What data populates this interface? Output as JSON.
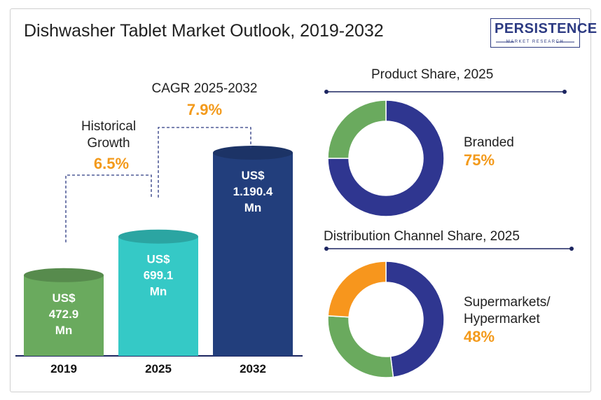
{
  "title": "Dishwasher Tablet Market Outlook, 2019-2032",
  "logo": {
    "main": "PERSISTENCE",
    "sub": "MARKET RESEARCH"
  },
  "colors": {
    "accent": "#f39a1b",
    "navy": "#2c3a82",
    "green": "#6aaa5e",
    "teal": "#35c9c6",
    "dark_blue": "#223e7c"
  },
  "chart_data": [
    {
      "type": "bar",
      "title": "",
      "categories": [
        "2019",
        "2025",
        "2032"
      ],
      "values": [
        472.9,
        699.1,
        1190.4
      ],
      "unit": "US$ Mn",
      "value_labels": [
        [
          "US$",
          "472.9",
          "Mn"
        ],
        [
          "US$",
          "699.1",
          "Mn"
        ],
        [
          "US$",
          "1.190.4",
          "Mn"
        ]
      ],
      "bar_colors": [
        "#6aaa5e",
        "#35c9c6",
        "#223e7c"
      ],
      "annotations": [
        {
          "lines": [
            "Historical",
            "Growth"
          ],
          "value": "6.5%"
        },
        {
          "lines": [
            "CAGR 2025-2032"
          ],
          "value": "7.9%"
        }
      ]
    },
    {
      "type": "pie",
      "title": "Product Share, 2025",
      "slices": [
        {
          "value": 75,
          "color": "#2f3690"
        },
        {
          "value": 25,
          "color": "#6aaa5e"
        }
      ],
      "label": [
        "Branded"
      ],
      "label_value": "75%"
    },
    {
      "type": "pie",
      "title": "Distribution Channel Share, 2025",
      "slices": [
        {
          "value": 48,
          "color": "#2f3690"
        },
        {
          "value": 28,
          "color": "#6aaa5e"
        },
        {
          "value": 24,
          "color": "#f7961d"
        }
      ],
      "label": [
        "Supermarkets/",
        "Hypermarket"
      ],
      "label_value": "48%"
    }
  ]
}
